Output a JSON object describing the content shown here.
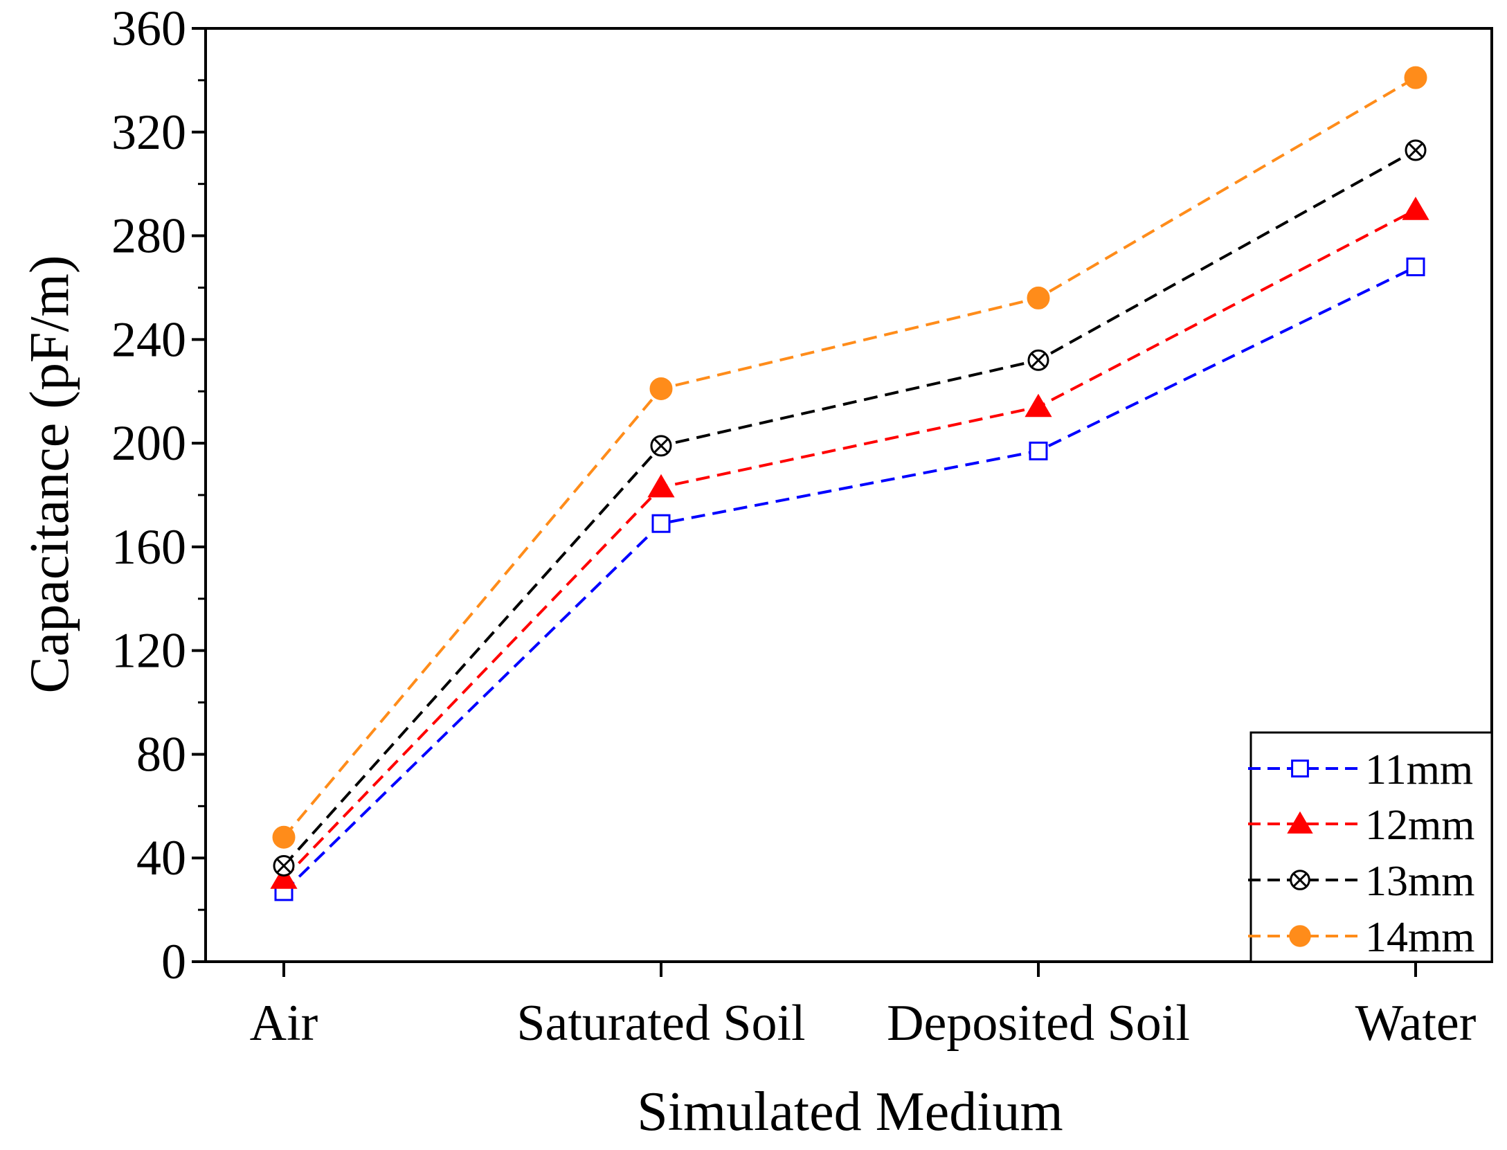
{
  "chart_data": {
    "type": "line",
    "title": "",
    "xlabel": "Simulated Medium",
    "ylabel": "Capacitance (pF/m)",
    "categories": [
      "Air",
      "Saturated Soil",
      "Deposited Soil",
      "Water"
    ],
    "ylim": [
      0,
      360
    ],
    "yticks": [
      0,
      40,
      80,
      120,
      160,
      200,
      240,
      280,
      320,
      360
    ],
    "ytick_labels": [
      "0",
      "40",
      "80",
      "120",
      "160",
      "200",
      "240",
      "280",
      "320",
      "360"
    ],
    "grid": false,
    "legend_position": "bottom-right",
    "series": [
      {
        "name": "11mm",
        "values": [
          27,
          169,
          197,
          268
        ],
        "color": "#0000ff",
        "marker": "open-square",
        "line_style": "dashed"
      },
      {
        "name": "12mm",
        "values": [
          32,
          183,
          214,
          290
        ],
        "color": "#ff0000",
        "marker": "filled-triangle",
        "line_style": "dashed"
      },
      {
        "name": "13mm",
        "values": [
          37,
          199,
          232,
          313
        ],
        "color": "#000000",
        "marker": "circle-x",
        "line_style": "dashed"
      },
      {
        "name": "14mm",
        "values": [
          48,
          221,
          256,
          341
        ],
        "color": "#ff8c1a",
        "marker": "filled-circle",
        "line_style": "dashed"
      }
    ]
  }
}
